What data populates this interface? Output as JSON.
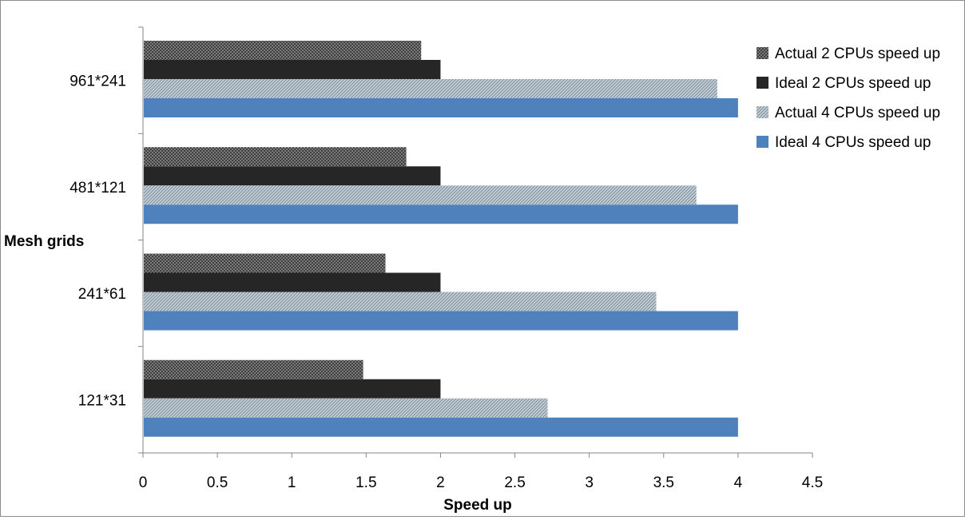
{
  "chart_data": {
    "type": "bar",
    "orientation": "horizontal",
    "categories": [
      "961*241",
      "481*121",
      "241*61",
      "121*31"
    ],
    "series": [
      {
        "name": "Actual 2 CPUs speed up",
        "values": [
          1.87,
          1.77,
          1.63,
          1.48
        ],
        "color": "#333333",
        "pattern": "crosshatch-dark"
      },
      {
        "name": "Ideal 2 CPUs speed up",
        "values": [
          2,
          2,
          2,
          2
        ],
        "color": "#262626",
        "pattern": "solid"
      },
      {
        "name": "Actual 4 CPUs speed up",
        "values": [
          3.86,
          3.72,
          3.45,
          2.72
        ],
        "color": "#9eadb8",
        "pattern": "hatch-light"
      },
      {
        "name": "Ideal 4 CPUs speed up",
        "values": [
          4,
          4,
          4,
          4
        ],
        "color": "#4f81bd",
        "pattern": "solid"
      }
    ],
    "xlabel": "Speed up",
    "ylabel": "Mesh grids",
    "xlim": [
      0,
      4.5
    ],
    "xticks": [
      "0",
      "0.5",
      "1",
      "1.5",
      "2",
      "2.5",
      "3",
      "3.5",
      "4",
      "4.5"
    ],
    "grid": false,
    "legend_position": "top-right"
  }
}
